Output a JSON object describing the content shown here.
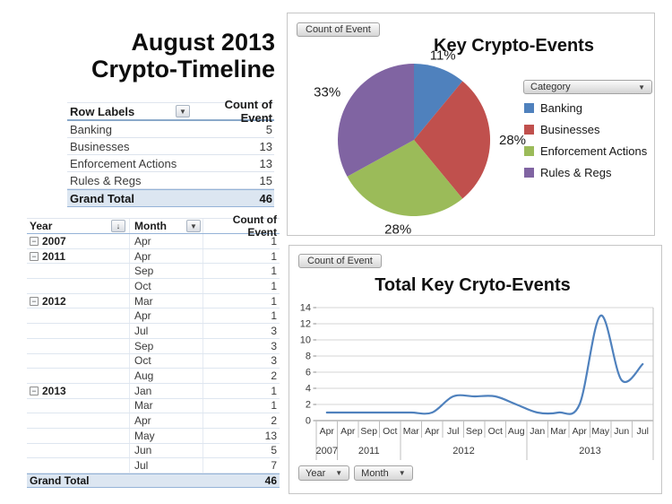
{
  "header": {
    "title_line1": "August 2013",
    "title_line2": "Crypto-Timeline"
  },
  "icons": {
    "dropdown": "▼",
    "sort_descending": "↓",
    "collapse": "−"
  },
  "colors": {
    "pivot_total_fill": "#DCE6F1",
    "pivot_border": "#95B3D7"
  },
  "summary_table": {
    "columns": [
      "Row Labels",
      "Count of Event"
    ],
    "rows": [
      {
        "label": "Banking",
        "count": 5
      },
      {
        "label": "Businesses",
        "count": 13
      },
      {
        "label": "Enforcement Actions",
        "count": 13
      },
      {
        "label": "Rules & Regs",
        "count": 15
      }
    ],
    "grand_total_label": "Grand Total",
    "grand_total_value": 46
  },
  "detail_table": {
    "columns": [
      "Year",
      "Month",
      "Count of Event"
    ],
    "rows": [
      {
        "year": "2007",
        "month": "Apr",
        "count": 1
      },
      {
        "year": "2011",
        "month": "Apr",
        "count": 1
      },
      {
        "year": "",
        "month": "Sep",
        "count": 1
      },
      {
        "year": "",
        "month": "Oct",
        "count": 1
      },
      {
        "year": "2012",
        "month": "Mar",
        "count": 1
      },
      {
        "year": "",
        "month": "Apr",
        "count": 1
      },
      {
        "year": "",
        "month": "Jul",
        "count": 3
      },
      {
        "year": "",
        "month": "Sep",
        "count": 3
      },
      {
        "year": "",
        "month": "Oct",
        "count": 3
      },
      {
        "year": "",
        "month": "Aug",
        "count": 2
      },
      {
        "year": "2013",
        "month": "Jan",
        "count": 1
      },
      {
        "year": "",
        "month": "Mar",
        "count": 1
      },
      {
        "year": "",
        "month": "Apr",
        "count": 2
      },
      {
        "year": "",
        "month": "May",
        "count": 13
      },
      {
        "year": "",
        "month": "Jun",
        "count": 5
      },
      {
        "year": "",
        "month": "Jul",
        "count": 7
      }
    ],
    "grand_total_label": "Grand Total",
    "grand_total_value": 46
  },
  "chart_data": [
    {
      "type": "pie",
      "title": "Key Crypto-Events",
      "field_button": "Count of Event",
      "legend_field_button": "Category",
      "categories": [
        "Banking",
        "Businesses",
        "Enforcement Actions",
        "Rules & Regs"
      ],
      "values": [
        11,
        28,
        28,
        33
      ],
      "labels": [
        "11%",
        "28%",
        "28%",
        "33%"
      ],
      "colors": [
        "#4F81BD",
        "#C0504D",
        "#9BBB59",
        "#8064A2"
      ],
      "legend_position": "right",
      "start_angle_deg": 0,
      "direction": "clockwise"
    },
    {
      "type": "line",
      "title": "Total Key Cryto-Events",
      "field_button": "Count of Event",
      "axis_field_buttons": [
        "Year",
        "Month"
      ],
      "x_months": [
        "Apr",
        "Apr",
        "Sep",
        "Oct",
        "Mar",
        "Apr",
        "Jul",
        "Sep",
        "Oct",
        "Aug",
        "Jan",
        "Mar",
        "Apr",
        "May",
        "Jun",
        "Jul"
      ],
      "year_groups": [
        {
          "label": "2007",
          "span": 1
        },
        {
          "label": "2011",
          "span": 3
        },
        {
          "label": "2012",
          "span": 6
        },
        {
          "label": "2013",
          "span": 6
        }
      ],
      "values": [
        1,
        1,
        1,
        1,
        1,
        1,
        3,
        3,
        3,
        2,
        1,
        1,
        2,
        13,
        5,
        7
      ],
      "y_ticks": [
        0,
        2,
        4,
        6,
        8,
        10,
        12,
        14
      ],
      "ylim": [
        0,
        14
      ],
      "ytick_step": 2,
      "line_color": "#4F81BD",
      "smooth": true,
      "grid": true
    }
  ]
}
